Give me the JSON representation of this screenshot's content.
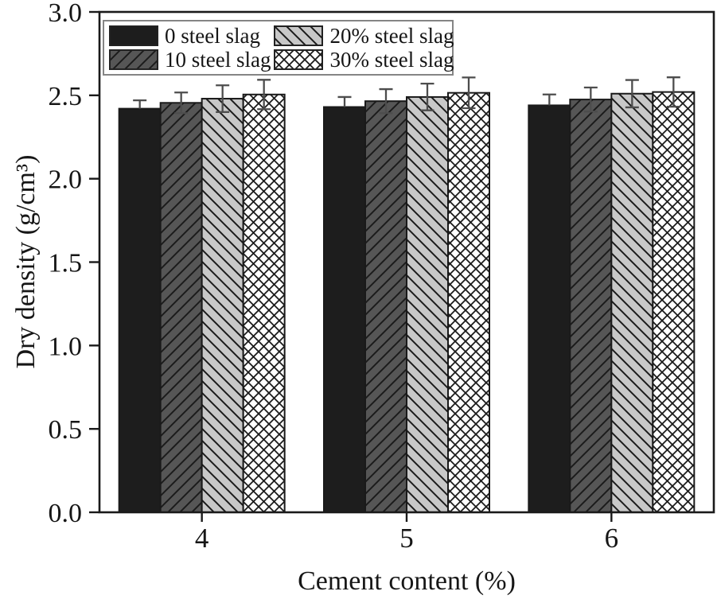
{
  "chart_data": {
    "type": "bar",
    "title": "",
    "xlabel": "Cement content (%)",
    "ylabel": "Dry density (g/cm³)",
    "categories": [
      "4",
      "5",
      "6"
    ],
    "ylim": [
      0.0,
      3.0
    ],
    "ytick_step": 0.5,
    "ytick_labels": [
      "0.0",
      "0.5",
      "1.0",
      "1.5",
      "2.0",
      "2.5",
      "3.0"
    ],
    "grid": false,
    "legend_position": "top-left-inside",
    "axis_color": "#1a1a1a",
    "error_bar_color": "#4d4d4d",
    "series": [
      {
        "name": "0 steel slag",
        "fill": "#1d1d1d",
        "hatch": "none",
        "values": [
          2.42,
          2.43,
          2.44
        ],
        "errors": [
          0.05,
          0.06,
          0.065
        ]
      },
      {
        "name": "10 steel slag",
        "fill": "#565656",
        "hatch": "fwd-diagonal",
        "values": [
          2.455,
          2.465,
          2.475
        ],
        "errors": [
          0.062,
          0.072,
          0.072
        ]
      },
      {
        "name": "20% steel slag",
        "fill": "#c8c8c8",
        "hatch": "back-diagonal",
        "values": [
          2.48,
          2.49,
          2.51
        ],
        "errors": [
          0.08,
          0.08,
          0.082
        ]
      },
      {
        "name": "30% steel slag",
        "fill": "#ffffff",
        "hatch": "crosshatch",
        "values": [
          2.505,
          2.515,
          2.52
        ],
        "errors": [
          0.088,
          0.092,
          0.088
        ]
      }
    ]
  }
}
